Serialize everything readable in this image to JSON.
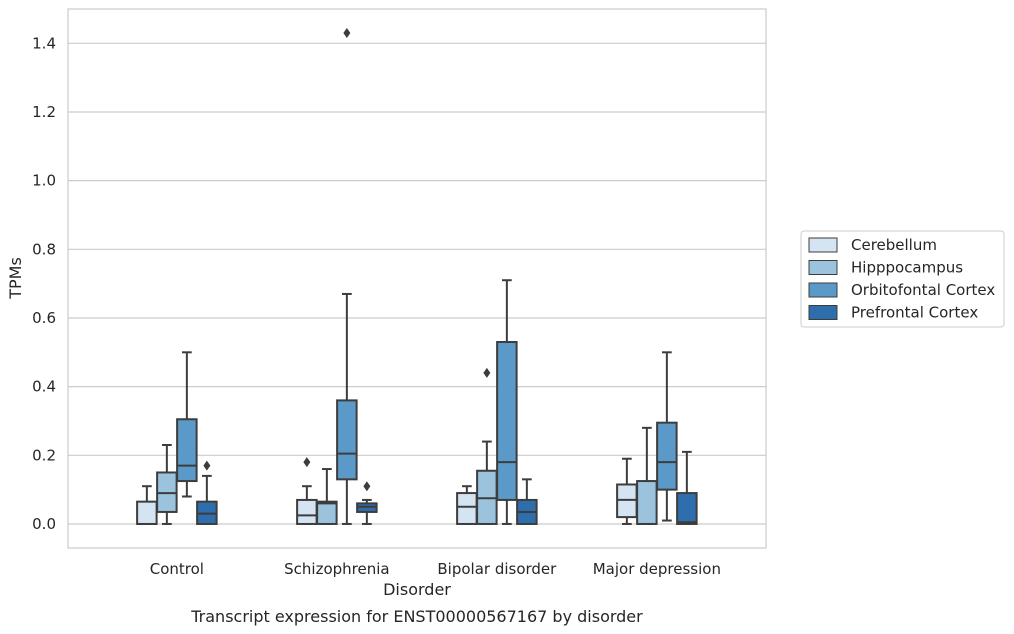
{
  "chart_data": {
    "type": "box",
    "caption": "Transcript expression for ENST00000567167 by disorder",
    "xlabel": "Disorder",
    "ylabel": "TPMs",
    "ylim": [
      -0.07,
      1.5
    ],
    "yticks": [
      "0.0",
      "0.2",
      "0.4",
      "0.6",
      "0.8",
      "1.0",
      "1.2",
      "1.4"
    ],
    "ytick_values": [
      0,
      0.2,
      0.4,
      0.6,
      0.8,
      1.0,
      1.2,
      1.4
    ],
    "grid": "horizontal",
    "legend_position": "right",
    "categories": [
      "Control",
      "Schizophrenia",
      "Bipolar disorder",
      "Major depression"
    ],
    "series": [
      {
        "name": "Cerebellum",
        "color": "#d4e4f2",
        "boxes": [
          {
            "whisker_low": 0.0,
            "q1": 0.0,
            "median": 0.0,
            "q3": 0.065,
            "whisker_high": 0.11,
            "outliers": []
          },
          {
            "whisker_low": 0.0,
            "q1": 0.0,
            "median": 0.025,
            "q3": 0.07,
            "whisker_high": 0.11,
            "outliers": [
              0.18
            ]
          },
          {
            "whisker_low": 0.0,
            "q1": 0.0,
            "median": 0.05,
            "q3": 0.09,
            "whisker_high": 0.11,
            "outliers": []
          },
          {
            "whisker_low": 0.0,
            "q1": 0.02,
            "median": 0.07,
            "q3": 0.115,
            "whisker_high": 0.19,
            "outliers": []
          }
        ]
      },
      {
        "name": "Hipppocampus",
        "color": "#9bc3dd",
        "boxes": [
          {
            "whisker_low": 0.0,
            "q1": 0.035,
            "median": 0.09,
            "q3": 0.15,
            "whisker_high": 0.23,
            "outliers": []
          },
          {
            "whisker_low": 0.0,
            "q1": 0.0,
            "median": 0.06,
            "q3": 0.065,
            "whisker_high": 0.16,
            "outliers": []
          },
          {
            "whisker_low": 0.0,
            "q1": 0.0,
            "median": 0.075,
            "q3": 0.155,
            "whisker_high": 0.24,
            "outliers": [
              0.44
            ]
          },
          {
            "whisker_low": 0.0,
            "q1": 0.0,
            "median": 0.0,
            "q3": 0.125,
            "whisker_high": 0.28,
            "outliers": []
          }
        ]
      },
      {
        "name": "Orbitofontal Cortex",
        "color": "#5b9ac8",
        "boxes": [
          {
            "whisker_low": 0.08,
            "q1": 0.125,
            "median": 0.17,
            "q3": 0.305,
            "whisker_high": 0.5,
            "outliers": []
          },
          {
            "whisker_low": 0.0,
            "q1": 0.13,
            "median": 0.205,
            "q3": 0.36,
            "whisker_high": 0.67,
            "outliers": [
              1.43
            ]
          },
          {
            "whisker_low": 0.0,
            "q1": 0.07,
            "median": 0.18,
            "q3": 0.53,
            "whisker_high": 0.71,
            "outliers": []
          },
          {
            "whisker_low": 0.01,
            "q1": 0.1,
            "median": 0.18,
            "q3": 0.295,
            "whisker_high": 0.5,
            "outliers": []
          }
        ]
      },
      {
        "name": "Prefrontal Cortex",
        "color": "#2e6ead",
        "boxes": [
          {
            "whisker_low": 0.0,
            "q1": 0.0,
            "median": 0.03,
            "q3": 0.065,
            "whisker_high": 0.14,
            "outliers": [
              0.17
            ]
          },
          {
            "whisker_low": 0.0,
            "q1": 0.035,
            "median": 0.05,
            "q3": 0.06,
            "whisker_high": 0.07,
            "outliers": [
              0.11
            ]
          },
          {
            "whisker_low": 0.0,
            "q1": 0.0,
            "median": 0.035,
            "q3": 0.07,
            "whisker_high": 0.13,
            "outliers": []
          },
          {
            "whisker_low": 0.0,
            "q1": 0.0,
            "median": 0.005,
            "q3": 0.09,
            "whisker_high": 0.21,
            "outliers": []
          }
        ]
      }
    ]
  },
  "style": {
    "line_color": "#3d3d3d",
    "grid_color": "#cccccc",
    "frame_color": "#cccccc"
  }
}
